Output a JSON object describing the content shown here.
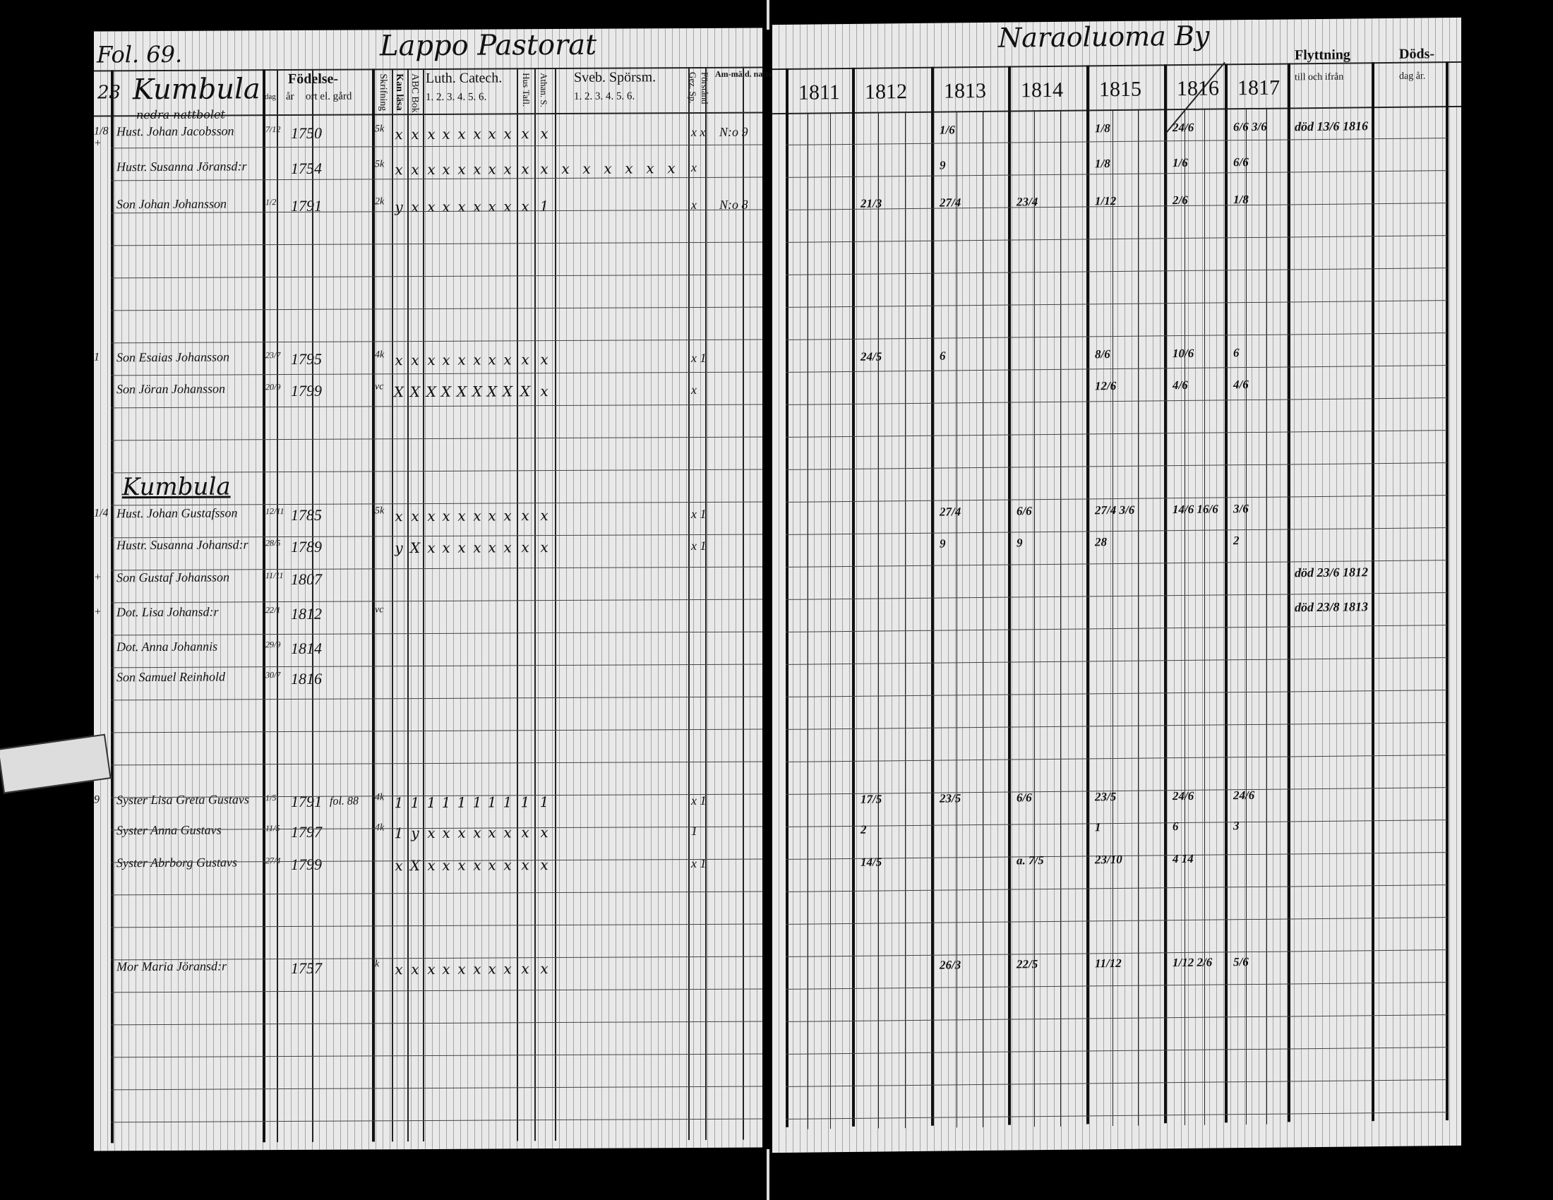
{
  "left_page": {
    "folio": "Fol. 69.",
    "parish_title": "Lappo Pastorat",
    "headers": {
      "fodelse": "Födelse-",
      "dag": "dag",
      "ar": "år",
      "ort": "ort el. gård",
      "skrifning": "Skrifning",
      "kan_lasa": "Kan läsa",
      "abc_bok": "ABC Bok",
      "luth_catech": "Luth. Catech.",
      "luth_cols": "1. 2. 3. 4. 5. 6.",
      "hus_tafl": "Hus Tafl.",
      "athan_s": "Athan. S.",
      "sveb_sporsm": "Sveb. Spörsm.",
      "sveb_cols": "1. 2. 3. 4. 5. 6.",
      "forstand": "Förstånd",
      "gez_sp": "Gez. Sp.",
      "antagna": "Am-mäld. nattv-går."
    },
    "sections": [
      {
        "heading": "Kumbula",
        "subheading": "nedra nattbolet",
        "margin": "23"
      },
      {
        "heading": "Kumbula",
        "subheading": "",
        "margin": ""
      }
    ],
    "people": [
      {
        "margin": "1/8 +",
        "name": "Hust. Johan Jacobsson",
        "day": "7/12",
        "year": "1750",
        "skrif": "5k",
        "marks": [
          "x",
          "x",
          "x",
          "x",
          "x",
          "x",
          "x",
          "x",
          "x",
          "x"
        ],
        "forstand": "x x",
        "antag": "N:o 9"
      },
      {
        "margin": "",
        "name": "Hustr. Susanna Jöransd:r",
        "day": "",
        "year": "1754",
        "skrif": "5k",
        "marks": [
          "x",
          "x",
          "x",
          "x",
          "x",
          "x",
          "x",
          "x",
          "x",
          "x",
          "x",
          "x",
          "x",
          "x",
          "x",
          "x"
        ],
        "forstand": "x",
        "antag": ""
      },
      {
        "margin": "",
        "name": "Son Johan Johansson",
        "day": "1/2",
        "year": "1791",
        "skrif": "2k",
        "marks": [
          "y",
          "x",
          "x",
          "x",
          "x",
          "x",
          "x",
          "x",
          "x",
          "1"
        ],
        "forstand": "x",
        "antag": "N:o 8"
      },
      {
        "margin": "1",
        "name": "Son Esaias Johansson",
        "day": "23/7",
        "year": "1795",
        "skrif": "4k",
        "marks": [
          "x",
          "x",
          "x",
          "x",
          "x",
          "x",
          "x",
          "x",
          "x",
          "x"
        ],
        "forstand": "x 1",
        "antag": ""
      },
      {
        "margin": "",
        "name": "Son Jöran Johansson",
        "day": "20/9",
        "year": "1799",
        "skrif": "vc",
        "marks": [
          "X",
          "X",
          "X",
          "X",
          "X",
          "X",
          "X",
          "X",
          "X",
          "x"
        ],
        "forstand": "x",
        "antag": ""
      },
      {
        "margin": "1/4",
        "name": "Hust. Johan Gustafsson",
        "day": "12/11",
        "year": "1785",
        "skrif": "5k",
        "marks": [
          "x",
          "x",
          "x",
          "x",
          "x",
          "x",
          "x",
          "x",
          "x",
          "x"
        ],
        "forstand": "x 1",
        "antag": ""
      },
      {
        "margin": "",
        "name": "Hustr. Susanna Johansd:r",
        "day": "28/5",
        "year": "1789",
        "skrif": "",
        "marks": [
          "y",
          "X",
          "x",
          "x",
          "x",
          "x",
          "x",
          "x",
          "x",
          "x"
        ],
        "forstand": "x 1",
        "antag": ""
      },
      {
        "margin": "+",
        "name": "Son Gustaf Johansson",
        "day": "11/11",
        "year": "1807",
        "skrif": "",
        "marks": [],
        "forstand": "",
        "antag": ""
      },
      {
        "margin": "+",
        "name": "Dot. Lisa Johansd:r",
        "day": "22/1",
        "year": "1812",
        "skrif": "vc",
        "marks": [],
        "forstand": "",
        "antag": ""
      },
      {
        "margin": "",
        "name": "Dot. Anna Johannis",
        "day": "29/9",
        "year": "1814",
        "skrif": "",
        "marks": [],
        "forstand": "",
        "antag": ""
      },
      {
        "margin": "",
        "name": "Son Samuel Reinhold",
        "day": "30/7",
        "year": "1816",
        "skrif": "",
        "marks": [],
        "forstand": "",
        "antag": ""
      },
      {
        "margin": "9",
        "name": "Syster Lisa Greta Gustavs",
        "day": "1/5",
        "year": "1791",
        "place": "fol. 88",
        "skrif": "4k",
        "marks": [
          "1",
          "1",
          "1",
          "1",
          "1",
          "1",
          "1",
          "1",
          "1",
          "1"
        ],
        "forstand": "x 1",
        "antag": ""
      },
      {
        "margin": "",
        "name": "Syster Anna Gustavs",
        "day": "11/5",
        "year": "1797",
        "skrif": "4k",
        "marks": [
          "1",
          "y",
          "x",
          "x",
          "x",
          "x",
          "x",
          "x",
          "x",
          "x"
        ],
        "forstand": "1",
        "antag": ""
      },
      {
        "margin": "",
        "name": "Syster Abrborg Gustavs",
        "day": "27/4",
        "year": "1799",
        "skrif": "",
        "marks": [
          "x",
          "X",
          "x",
          "x",
          "x",
          "x",
          "x",
          "x",
          "x",
          "x"
        ],
        "forstand": "x 1",
        "antag": ""
      },
      {
        "margin": "",
        "name": "Mor Maria Jöransd:r",
        "day": "",
        "year": "1757",
        "skrif": "k",
        "marks": [
          "x",
          "x",
          "x",
          "x",
          "x",
          "x",
          "x",
          "x",
          "x",
          "x"
        ],
        "forstand": "",
        "antag": ""
      }
    ]
  },
  "right_page": {
    "village_title": "Naraoluoma By",
    "years": [
      "1811",
      "1812",
      "1813",
      "1814",
      "1815",
      "1816",
      "1817"
    ],
    "flyttning": "Flyttning",
    "flyttning_sub": "till och ifrån",
    "doeds": "Döds-",
    "doeds_sub": "dag år.",
    "entries": [
      {
        "row": 0,
        "year": "1813",
        "text": "1/6"
      },
      {
        "row": 0,
        "year": "1815",
        "text": "1/8"
      },
      {
        "row": 0,
        "year": "1816",
        "text": "24/6"
      },
      {
        "row": 0,
        "year": "1817",
        "text": "6/6  3/6"
      },
      {
        "row": 0,
        "year": "death",
        "text": "död 13/6 1816"
      },
      {
        "row": 1,
        "year": "1813",
        "text": "9"
      },
      {
        "row": 1,
        "year": "1815",
        "text": "1/8"
      },
      {
        "row": 1,
        "year": "1816",
        "text": "1/6"
      },
      {
        "row": 1,
        "year": "1817",
        "text": "6/6"
      },
      {
        "row": 2,
        "year": "1812",
        "text": "21/3"
      },
      {
        "row": 2,
        "year": "1813",
        "text": "27/4"
      },
      {
        "row": 2,
        "year": "1814",
        "text": "23/4"
      },
      {
        "row": 2,
        "year": "1815",
        "text": "1/12"
      },
      {
        "row": 2,
        "year": "1816",
        "text": "2/6"
      },
      {
        "row": 2,
        "year": "1817",
        "text": "1/8"
      },
      {
        "row": 3,
        "year": "1812",
        "text": "24/5"
      },
      {
        "row": 3,
        "year": "1813",
        "text": "6"
      },
      {
        "row": 3,
        "year": "1815",
        "text": "8/6"
      },
      {
        "row": 3,
        "year": "1816",
        "text": "10/6"
      },
      {
        "row": 3,
        "year": "1817",
        "text": "6"
      },
      {
        "row": 4,
        "year": "1815",
        "text": "12/6"
      },
      {
        "row": 4,
        "year": "1816",
        "text": "4/6"
      },
      {
        "row": 4,
        "year": "1817",
        "text": "4/6"
      },
      {
        "row": 5,
        "year": "1813",
        "text": "27/4"
      },
      {
        "row": 5,
        "year": "1814",
        "text": "6/6"
      },
      {
        "row": 5,
        "year": "1815",
        "text": "27/4  3/6"
      },
      {
        "row": 5,
        "year": "1816",
        "text": "14/6  16/6"
      },
      {
        "row": 5,
        "year": "1817",
        "text": "3/6"
      },
      {
        "row": 6,
        "year": "1813",
        "text": "9"
      },
      {
        "row": 6,
        "year": "1814",
        "text": "9"
      },
      {
        "row": 6,
        "year": "1815",
        "text": "28"
      },
      {
        "row": 6,
        "year": "1817",
        "text": "2"
      },
      {
        "row": 7,
        "year": "death",
        "text": "död 23/6 1812"
      },
      {
        "row": 8,
        "year": "death",
        "text": "död 23/8 1813"
      },
      {
        "row": 11,
        "year": "1812",
        "text": "17/5"
      },
      {
        "row": 11,
        "year": "1813",
        "text": "23/5"
      },
      {
        "row": 11,
        "year": "1814",
        "text": "6/6"
      },
      {
        "row": 11,
        "year": "1815",
        "text": "23/5"
      },
      {
        "row": 11,
        "year": "1816",
        "text": "24/6"
      },
      {
        "row": 11,
        "year": "1817",
        "text": "24/6"
      },
      {
        "row": 12,
        "year": "1812",
        "text": "2"
      },
      {
        "row": 12,
        "year": "1815",
        "text": "1"
      },
      {
        "row": 12,
        "year": "1816",
        "text": "6"
      },
      {
        "row": 12,
        "year": "1817",
        "text": "3"
      },
      {
        "row": 13,
        "year": "1812",
        "text": "14/5"
      },
      {
        "row": 13,
        "year": "1814",
        "text": "a. 7/5"
      },
      {
        "row": 13,
        "year": "1815",
        "text": "23/10"
      },
      {
        "row": 13,
        "year": "1816",
        "text": "4  14"
      },
      {
        "row": 14,
        "year": "1813",
        "text": "26/3"
      },
      {
        "row": 14,
        "year": "1814",
        "text": "22/5"
      },
      {
        "row": 14,
        "year": "1815",
        "text": "11/12"
      },
      {
        "row": 14,
        "year": "1816",
        "text": "1/12  2/6"
      },
      {
        "row": 14,
        "year": "1817",
        "text": "5/6"
      }
    ]
  }
}
